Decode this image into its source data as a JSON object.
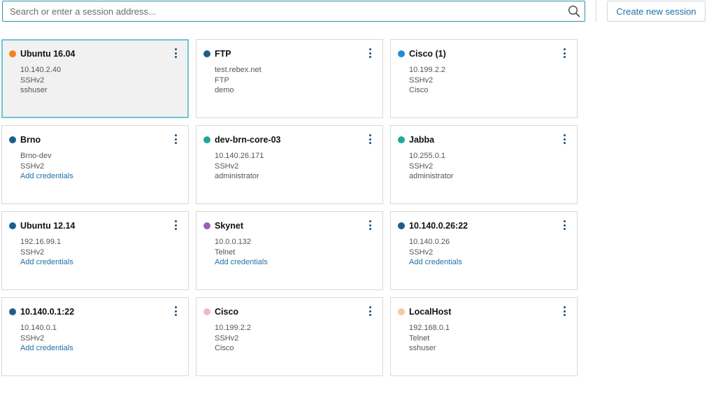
{
  "search": {
    "placeholder": "Search or enter a session address..."
  },
  "toolbar": {
    "create_label": "Create new session"
  },
  "sessions": [
    {
      "name": "Ubuntu 16.04",
      "color": "#f5821f",
      "selected": true,
      "lines": [
        {
          "text": "10.140.2.40"
        },
        {
          "text": "SSHv2"
        },
        {
          "text": "sshuser"
        }
      ]
    },
    {
      "name": "FTP",
      "color": "#1b5e8c",
      "lines": [
        {
          "text": "test.rebex.net"
        },
        {
          "text": "FTP"
        },
        {
          "text": "demo"
        }
      ]
    },
    {
      "name": "Cisco (1)",
      "color": "#1d8fd6",
      "lines": [
        {
          "text": "10.199.2.2"
        },
        {
          "text": "SSHv2"
        },
        {
          "text": "Cisco"
        }
      ]
    },
    {
      "name": "Brno",
      "color": "#1b5e8c",
      "lines": [
        {
          "text": "Brno-dev"
        },
        {
          "text": "SSHv2"
        },
        {
          "text": "Add credentials",
          "link": true
        }
      ]
    },
    {
      "name": "dev-brn-core-03",
      "color": "#1fa79a",
      "lines": [
        {
          "text": "10.140.26.171"
        },
        {
          "text": "SSHv2"
        },
        {
          "text": "administrator"
        }
      ]
    },
    {
      "name": "Jabba",
      "color": "#1fa79a",
      "lines": [
        {
          "text": "10.255.0.1"
        },
        {
          "text": "SSHv2"
        },
        {
          "text": "administrator"
        }
      ]
    },
    {
      "name": "Ubuntu 12.14",
      "color": "#1b5e8c",
      "lines": [
        {
          "text": "192.16.99.1"
        },
        {
          "text": "SSHv2"
        },
        {
          "text": "Add credentials",
          "link": true
        }
      ]
    },
    {
      "name": "Skynet",
      "color": "#9b5fc0",
      "lines": [
        {
          "text": "10.0.0.132"
        },
        {
          "text": "Telnet"
        },
        {
          "text": "Add credentials",
          "link": true
        }
      ]
    },
    {
      "name": "10.140.0.26:22",
      "color": "#1b5e8c",
      "lines": [
        {
          "text": "10.140.0.26"
        },
        {
          "text": "SSHv2"
        },
        {
          "text": "Add credentials",
          "link": true
        }
      ]
    },
    {
      "name": "10.140.0.1:22",
      "color": "#1b5e8c",
      "lines": [
        {
          "text": "10.140.0.1"
        },
        {
          "text": "SSHv2"
        },
        {
          "text": "Add credentials",
          "link": true
        }
      ]
    },
    {
      "name": "Cisco",
      "color": "#f2b6d2",
      "lines": [
        {
          "text": "10.199.2.2"
        },
        {
          "text": "SSHv2"
        },
        {
          "text": "Cisco"
        }
      ]
    },
    {
      "name": "LocalHost",
      "color": "#f5c9a3",
      "lines": [
        {
          "text": "192.168.0.1"
        },
        {
          "text": "Telnet"
        },
        {
          "text": "sshuser"
        }
      ]
    }
  ]
}
